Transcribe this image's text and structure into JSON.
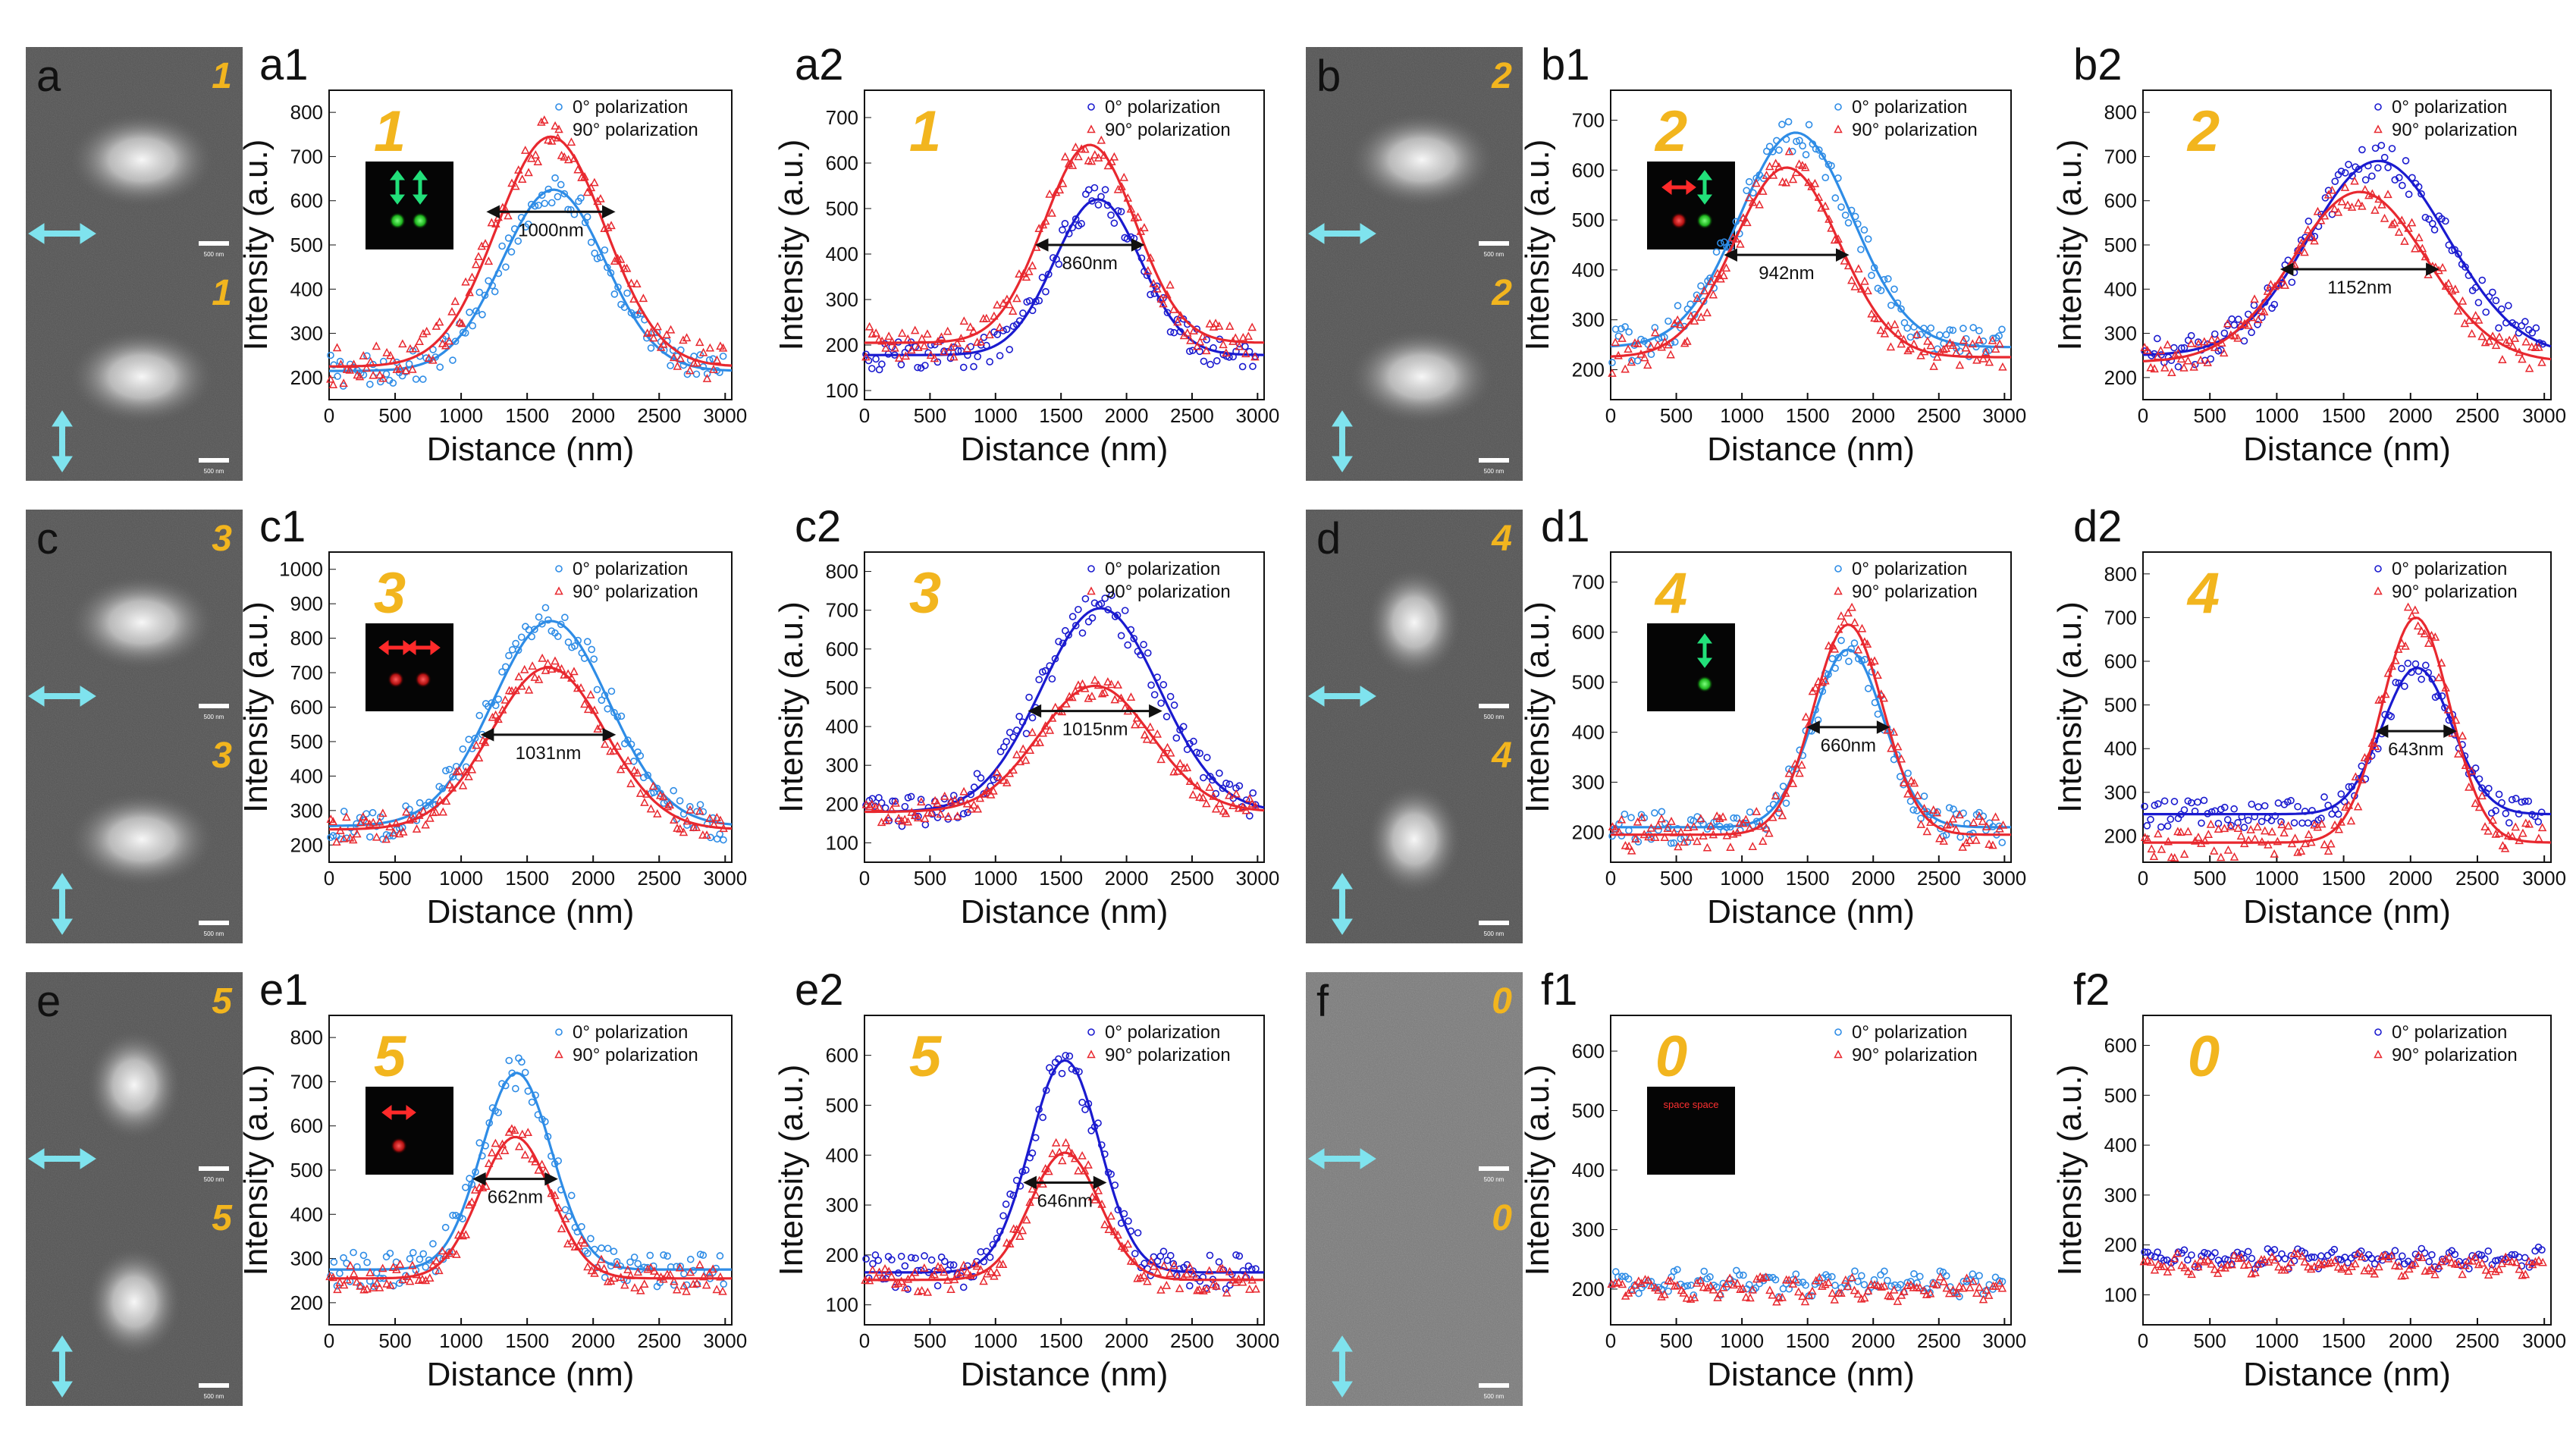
{
  "colors": {
    "series_0_light": "#2E8CE6",
    "series_0_dark": "#1A1ACF",
    "series_90": "#E8282F",
    "number_label": "#F2B51E",
    "arrow_cyan": "#7FE3EE"
  },
  "micrographs": [
    {
      "label": "a",
      "number": "1",
      "scale_label": "500 nm"
    },
    {
      "label": "b",
      "number": "2",
      "scale_label": "500 nm"
    },
    {
      "label": "c",
      "number": "3",
      "scale_label": "500 nm"
    },
    {
      "label": "d",
      "number": "4",
      "scale_label": "500 nm"
    },
    {
      "label": "e",
      "number": "5",
      "scale_label": "500 nm"
    },
    {
      "label": "f",
      "number": "0",
      "scale_label": "500 nm"
    }
  ],
  "chart_data": [
    {
      "label": "a1",
      "number": "1",
      "type": "scatter",
      "series0_color": "light",
      "xlabel": "Distance (nm)",
      "ylabel": "Intensity (a.u.)",
      "xlim": [
        0,
        3050
      ],
      "ylim": [
        150,
        850
      ],
      "xticks": [
        0,
        500,
        1000,
        1500,
        2000,
        2500,
        3000
      ],
      "yticks": [
        200,
        300,
        400,
        500,
        600,
        700,
        800
      ],
      "series": [
        {
          "name": "0°  polarization",
          "baseline": 215,
          "peak": 625,
          "center": 1700,
          "sigma": 390
        },
        {
          "name": "90° polarization",
          "baseline": 225,
          "peak": 745,
          "center": 1680,
          "sigma": 410
        }
      ],
      "fwhm_label": "1000nm",
      "fwhm_y": 575,
      "inset": {
        "kind": "green-two-vertical"
      }
    },
    {
      "label": "a2",
      "number": "1",
      "type": "scatter",
      "series0_color": "dark",
      "xlabel": "Distance (nm)",
      "ylabel": "Intensity (a.u.)",
      "xlim": [
        0,
        3050
      ],
      "ylim": [
        80,
        760
      ],
      "xticks": [
        0,
        500,
        1000,
        1500,
        2000,
        2500,
        3000
      ],
      "yticks": [
        100,
        200,
        300,
        400,
        500,
        600,
        700
      ],
      "series": [
        {
          "name": "0°  polarization",
          "baseline": 178,
          "peak": 520,
          "center": 1780,
          "sigma": 330
        },
        {
          "name": "90° polarization",
          "baseline": 205,
          "peak": 640,
          "center": 1720,
          "sigma": 350
        }
      ],
      "fwhm_label": "860nm",
      "fwhm_y": 420,
      "inset": null
    },
    {
      "label": "b1",
      "number": "2",
      "type": "scatter",
      "series0_color": "light",
      "xlabel": "Distance (nm)",
      "ylabel": "Intensity (a.u.)",
      "xlim": [
        0,
        3050
      ],
      "ylim": [
        140,
        760
      ],
      "xticks": [
        0,
        500,
        1000,
        1500,
        2000,
        2500,
        3000
      ],
      "yticks": [
        200,
        300,
        400,
        500,
        600,
        700
      ],
      "series": [
        {
          "name": "0°  polarization",
          "baseline": 245,
          "peak": 675,
          "center": 1410,
          "sigma": 430
        },
        {
          "name": "90° polarization",
          "baseline": 225,
          "peak": 605,
          "center": 1340,
          "sigma": 400
        }
      ],
      "fwhm_label": "942nm",
      "fwhm_y": 430,
      "inset": {
        "kind": "red-green"
      }
    },
    {
      "label": "b2",
      "number": "2",
      "type": "scatter",
      "series0_color": "dark",
      "xlabel": "Distance (nm)",
      "ylabel": "Intensity (a.u.)",
      "xlim": [
        0,
        3050
      ],
      "ylim": [
        150,
        850
      ],
      "xticks": [
        0,
        500,
        1000,
        1500,
        2000,
        2500,
        3000
      ],
      "yticks": [
        200,
        300,
        400,
        500,
        600,
        700,
        800
      ],
      "series": [
        {
          "name": "0°  polarization",
          "baseline": 250,
          "peak": 690,
          "center": 1760,
          "sigma": 520
        },
        {
          "name": "90° polarization",
          "baseline": 235,
          "peak": 620,
          "center": 1620,
          "sigma": 500
        }
      ],
      "fwhm_label": "1152nm",
      "fwhm_y": 445,
      "inset": null
    },
    {
      "label": "c1",
      "number": "3",
      "type": "scatter",
      "series0_color": "light",
      "xlabel": "Distance (nm)",
      "ylabel": "Intensity (a.u.)",
      "xlim": [
        0,
        3050
      ],
      "ylim": [
        150,
        1050
      ],
      "xticks": [
        0,
        500,
        1000,
        1500,
        2000,
        2500,
        3000
      ],
      "yticks": [
        200,
        300,
        400,
        500,
        600,
        700,
        800,
        900,
        1000
      ],
      "series": [
        {
          "name": "0°  polarization",
          "baseline": 255,
          "peak": 850,
          "center": 1680,
          "sigma": 440
        },
        {
          "name": "90° polarization",
          "baseline": 245,
          "peak": 715,
          "center": 1660,
          "sigma": 430
        }
      ],
      "fwhm_label": "1031nm",
      "fwhm_y": 520,
      "inset": {
        "kind": "red-two-horizontal"
      }
    },
    {
      "label": "c2",
      "number": "3",
      "type": "scatter",
      "series0_color": "dark",
      "xlabel": "Distance (nm)",
      "ylabel": "Intensity (a.u.)",
      "xlim": [
        0,
        3050
      ],
      "ylim": [
        50,
        850
      ],
      "xticks": [
        0,
        500,
        1000,
        1500,
        2000,
        2500,
        3000
      ],
      "yticks": [
        100,
        200,
        300,
        400,
        500,
        600,
        700,
        800
      ],
      "series": [
        {
          "name": "0°  polarization",
          "baseline": 180,
          "peak": 705,
          "center": 1800,
          "sigma": 450
        },
        {
          "name": "90° polarization",
          "baseline": 180,
          "peak": 505,
          "center": 1760,
          "sigma": 430
        }
      ],
      "fwhm_label": "1015nm",
      "fwhm_y": 440,
      "inset": null
    },
    {
      "label": "d1",
      "number": "4",
      "type": "scatter",
      "series0_color": "light",
      "xlabel": "Distance (nm)",
      "ylabel": "Intensity (a.u.)",
      "xlim": [
        0,
        3050
      ],
      "ylim": [
        140,
        760
      ],
      "xticks": [
        0,
        500,
        1000,
        1500,
        2000,
        2500,
        3000
      ],
      "yticks": [
        200,
        300,
        400,
        500,
        600,
        700
      ],
      "series": [
        {
          "name": "0°  polarization",
          "baseline": 210,
          "peak": 565,
          "center": 1810,
          "sigma": 270
        },
        {
          "name": "90° polarization",
          "baseline": 195,
          "peak": 615,
          "center": 1810,
          "sigma": 265
        }
      ],
      "fwhm_label": "660nm",
      "fwhm_y": 410,
      "inset": {
        "kind": "green-one-vertical"
      }
    },
    {
      "label": "d2",
      "number": "4",
      "type": "scatter",
      "series0_color": "dark",
      "xlabel": "Distance (nm)",
      "ylabel": "Intensity (a.u.)",
      "xlim": [
        0,
        3050
      ],
      "ylim": [
        140,
        850
      ],
      "xticks": [
        0,
        500,
        1000,
        1500,
        2000,
        2500,
        3000
      ],
      "yticks": [
        200,
        300,
        400,
        500,
        600,
        700,
        800
      ],
      "series": [
        {
          "name": "0°  polarization",
          "baseline": 250,
          "peak": 585,
          "center": 2050,
          "sigma": 260
        },
        {
          "name": "90° polarization",
          "baseline": 185,
          "peak": 700,
          "center": 2040,
          "sigma": 255
        }
      ],
      "fwhm_label": "643nm",
      "fwhm_y": 440,
      "inset": null
    },
    {
      "label": "e1",
      "number": "5",
      "type": "scatter",
      "series0_color": "light",
      "xlabel": "Distance (nm)",
      "ylabel": "Intensity (a.u.)",
      "xlim": [
        0,
        3050
      ],
      "ylim": [
        150,
        850
      ],
      "xticks": [
        0,
        500,
        1000,
        1500,
        2000,
        2500,
        3000
      ],
      "yticks": [
        200,
        300,
        400,
        500,
        600,
        700,
        800
      ],
      "series": [
        {
          "name": "0°  polarization",
          "baseline": 275,
          "peak": 720,
          "center": 1420,
          "sigma": 265
        },
        {
          "name": "90° polarization",
          "baseline": 255,
          "peak": 575,
          "center": 1410,
          "sigma": 270
        }
      ],
      "fwhm_label": "662nm",
      "fwhm_y": 480,
      "inset": {
        "kind": "red-one-horizontal"
      }
    },
    {
      "label": "e2",
      "number": "5",
      "type": "scatter",
      "series0_color": "dark",
      "xlabel": "Distance (nm)",
      "ylabel": "Intensity (a.u.)",
      "xlim": [
        0,
        3050
      ],
      "ylim": [
        60,
        680
      ],
      "xticks": [
        0,
        500,
        1000,
        1500,
        2000,
        2500,
        3000
      ],
      "yticks": [
        100,
        200,
        300,
        400,
        500,
        600
      ],
      "series": [
        {
          "name": "0°  polarization",
          "baseline": 165,
          "peak": 590,
          "center": 1530,
          "sigma": 265
        },
        {
          "name": "90° polarization",
          "baseline": 150,
          "peak": 405,
          "center": 1530,
          "sigma": 265
        }
      ],
      "fwhm_label": "646nm",
      "fwhm_y": 345,
      "inset": null
    },
    {
      "label": "f1",
      "number": "0",
      "type": "scatter",
      "series0_color": "light",
      "xlabel": "Distance (nm)",
      "ylabel": "Intensity (a.u.)",
      "xlim": [
        0,
        3050
      ],
      "ylim": [
        140,
        660
      ],
      "xticks": [
        0,
        500,
        1000,
        1500,
        2000,
        2500,
        3000
      ],
      "yticks": [
        200,
        300,
        400,
        500,
        600
      ],
      "series": [
        {
          "name": "0°  polarization",
          "baseline": 210,
          "peak": 210,
          "center": 1500,
          "sigma": 500
        },
        {
          "name": "90° polarization",
          "baseline": 200,
          "peak": 200,
          "center": 1500,
          "sigma": 500
        }
      ],
      "fwhm_label": "",
      "fwhm_y": 0,
      "inset": {
        "kind": "dark-empty",
        "text": "space space"
      }
    },
    {
      "label": "f2",
      "number": "0",
      "type": "scatter",
      "series0_color": "dark",
      "xlabel": "Distance (nm)",
      "ylabel": "Intensity (a.u.)",
      "xlim": [
        0,
        3050
      ],
      "ylim": [
        40,
        660
      ],
      "xticks": [
        0,
        500,
        1000,
        1500,
        2000,
        2500,
        3000
      ],
      "yticks": [
        100,
        200,
        300,
        400,
        500,
        600
      ],
      "series": [
        {
          "name": "0°  polarization",
          "baseline": 175,
          "peak": 175,
          "center": 1500,
          "sigma": 500
        },
        {
          "name": "90° polarization",
          "baseline": 160,
          "peak": 160,
          "center": 1500,
          "sigma": 500
        }
      ],
      "fwhm_label": "",
      "fwhm_y": 0,
      "inset": null
    }
  ]
}
